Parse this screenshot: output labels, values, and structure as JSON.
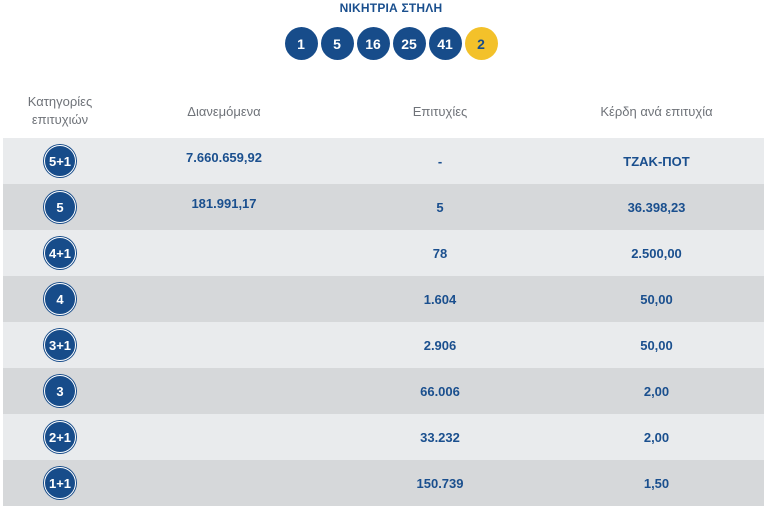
{
  "winning": {
    "title": "ΝΙΚΗΤΡΙΑ ΣΤΗΛΗ",
    "numbers": [
      "1",
      "5",
      "16",
      "25",
      "41"
    ],
    "joker": "2"
  },
  "table": {
    "headers": {
      "category": "Κατηγορίες επιτυχιών",
      "distributed": "Διανεμόμενα",
      "winners": "Επιτυχίες",
      "prize": "Κέρδη ανά επιτυχία"
    },
    "rows": [
      {
        "category": "5+1",
        "distributed": "7.660.659,92",
        "winners": "-",
        "prize": "ΤΖΑΚ-ΠΟΤ"
      },
      {
        "category": "5",
        "distributed": "181.991,17",
        "winners": "5",
        "prize": "36.398,23"
      },
      {
        "category": "4+1",
        "distributed": "",
        "winners": "78",
        "prize": "2.500,00"
      },
      {
        "category": "4",
        "distributed": "",
        "winners": "1.604",
        "prize": "50,00"
      },
      {
        "category": "3+1",
        "distributed": "",
        "winners": "2.906",
        "prize": "50,00"
      },
      {
        "category": "3",
        "distributed": "",
        "winners": "66.006",
        "prize": "2,00"
      },
      {
        "category": "2+1",
        "distributed": "",
        "winners": "33.232",
        "prize": "2,00"
      },
      {
        "category": "1+1",
        "distributed": "",
        "winners": "150.739",
        "prize": "1,50"
      }
    ]
  },
  "colors": {
    "primary_blue": "#174c8a",
    "joker_yellow": "#f3c12a",
    "row_light": "#e9ebed",
    "row_dark": "#d6d8da",
    "header_text": "#6f7379"
  }
}
